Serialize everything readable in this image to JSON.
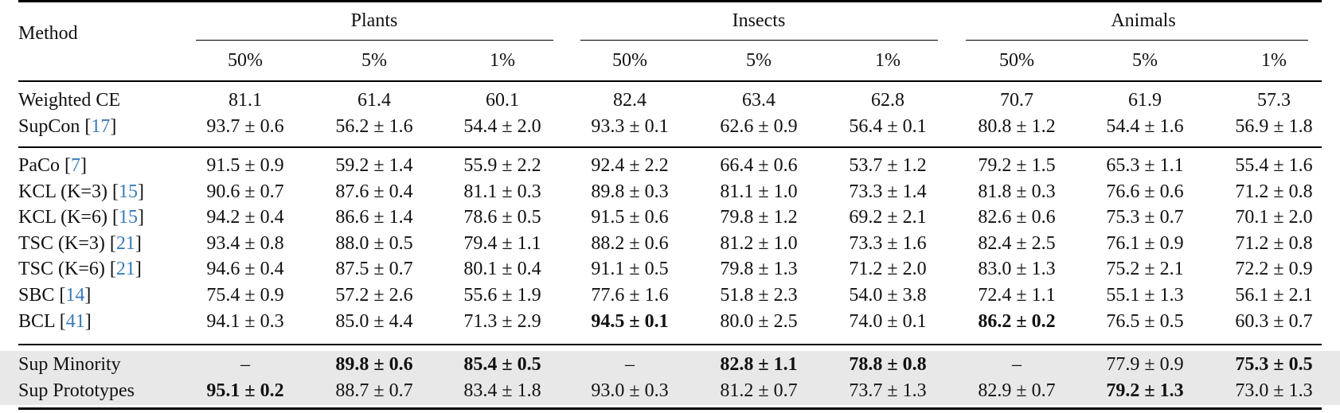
{
  "table": {
    "method_header": "Method",
    "groups": [
      {
        "name": "Plants",
        "subcolumns": [
          "50%",
          "5%",
          "1%"
        ]
      },
      {
        "name": "Insects",
        "subcolumns": [
          "50%",
          "5%",
          "1%"
        ]
      },
      {
        "name": "Animals",
        "subcolumns": [
          "50%",
          "5%",
          "1%"
        ]
      }
    ],
    "sections": [
      {
        "rows": [
          {
            "method": "Weighted CE",
            "cite": "",
            "values": [
              "81.1",
              "61.4",
              "60.1",
              "82.4",
              "63.4",
              "62.8",
              "70.7",
              "61.9",
              "57.3"
            ],
            "bold": []
          },
          {
            "method": "SupCon",
            "cite": "17",
            "values": [
              "93.7 ± 0.6",
              "56.2 ± 1.6",
              "54.4 ± 2.0",
              "93.3 ± 0.1",
              "62.6 ± 0.9",
              "56.4 ± 0.1",
              "80.8 ± 1.2",
              "54.4 ± 1.6",
              "56.9 ± 1.8"
            ],
            "bold": []
          }
        ]
      },
      {
        "rows": [
          {
            "method": "PaCo",
            "cite": "7",
            "values": [
              "91.5 ± 0.9",
              "59.2 ± 1.4",
              "55.9 ± 2.2",
              "92.4 ± 2.2",
              "66.4 ± 0.6",
              "53.7 ± 1.2",
              "79.2 ± 1.5",
              "65.3 ± 1.1",
              "55.4 ± 1.6"
            ],
            "bold": []
          },
          {
            "method": "KCL (K=3)",
            "cite": "15",
            "values": [
              "90.6 ± 0.7",
              "87.6 ± 0.4",
              "81.1 ± 0.3",
              "89.8 ± 0.3",
              "81.1 ± 1.0",
              "73.3 ± 1.4",
              "81.8 ± 0.3",
              "76.6 ± 0.6",
              "71.2 ± 0.8"
            ],
            "bold": []
          },
          {
            "method": "KCL (K=6)",
            "cite": "15",
            "values": [
              "94.2 ± 0.4",
              "86.6 ± 1.4",
              "78.6 ± 0.5",
              "91.5 ± 0.6",
              "79.8 ± 1.2",
              "69.2 ± 2.1",
              "82.6 ± 0.6",
              "75.3 ± 0.7",
              "70.1 ± 2.0"
            ],
            "bold": []
          },
          {
            "method": "TSC (K=3)",
            "cite": "21",
            "values": [
              "93.4 ± 0.8",
              "88.0 ± 0.5",
              "79.4 ± 1.1",
              "88.2 ± 0.6",
              "81.2 ± 1.0",
              "73.3 ± 1.6",
              "82.4 ± 2.5",
              "76.1 ± 0.9",
              "71.2 ± 0.8"
            ],
            "bold": []
          },
          {
            "method": "TSC (K=6)",
            "cite": "21",
            "values": [
              "94.6 ± 0.4",
              "87.5 ± 0.7",
              "80.1 ± 0.4",
              "91.1 ± 0.5",
              "79.8 ± 1.3",
              "71.2 ± 2.0",
              "83.0 ± 1.3",
              "75.2 ± 2.1",
              "72.2 ± 0.9"
            ],
            "bold": []
          },
          {
            "method": "SBC",
            "cite": "14",
            "values": [
              "75.4 ± 0.9",
              "57.2 ± 2.6",
              "55.6 ± 1.9",
              "77.6 ± 1.6",
              "51.8 ± 2.3",
              "54.0 ± 3.8",
              "72.4 ± 1.1",
              "55.1 ± 1.3",
              "56.1 ± 2.1"
            ],
            "bold": []
          },
          {
            "method": "BCL",
            "cite": "41",
            "values": [
              "94.1 ± 0.3",
              "85.0 ± 4.4",
              "71.3 ± 2.9",
              "94.5 ± 0.1",
              "80.0 ± 2.5",
              "74.0 ± 0.1",
              "86.2 ± 0.2",
              "76.5 ± 0.5",
              "60.3 ± 0.7"
            ],
            "bold": [
              3,
              6
            ]
          }
        ]
      },
      {
        "highlighted": true,
        "rows": [
          {
            "method": "Sup Minority",
            "cite": "",
            "values": [
              "–",
              "89.8 ± 0.6",
              "85.4 ± 0.5",
              "–",
              "82.8 ± 1.1",
              "78.8 ± 0.8",
              "–",
              "77.9 ± 0.9",
              "75.3 ± 0.5"
            ],
            "bold": [
              1,
              2,
              4,
              5,
              8
            ]
          },
          {
            "method": "Sup Prototypes",
            "cite": "",
            "values": [
              "95.1 ± 0.2",
              "88.7 ± 0.7",
              "83.4 ± 1.8",
              "93.0 ± 0.3",
              "81.2 ± 0.7",
              "73.7 ± 1.3",
              "82.9 ± 0.7",
              "79.2 ± 1.3",
              "73.0 ± 1.3"
            ],
            "bold": [
              0,
              7
            ]
          }
        ]
      }
    ],
    "colors": {
      "citation": "#3a7bb8",
      "highlight_band": "#e8e8e8"
    }
  }
}
